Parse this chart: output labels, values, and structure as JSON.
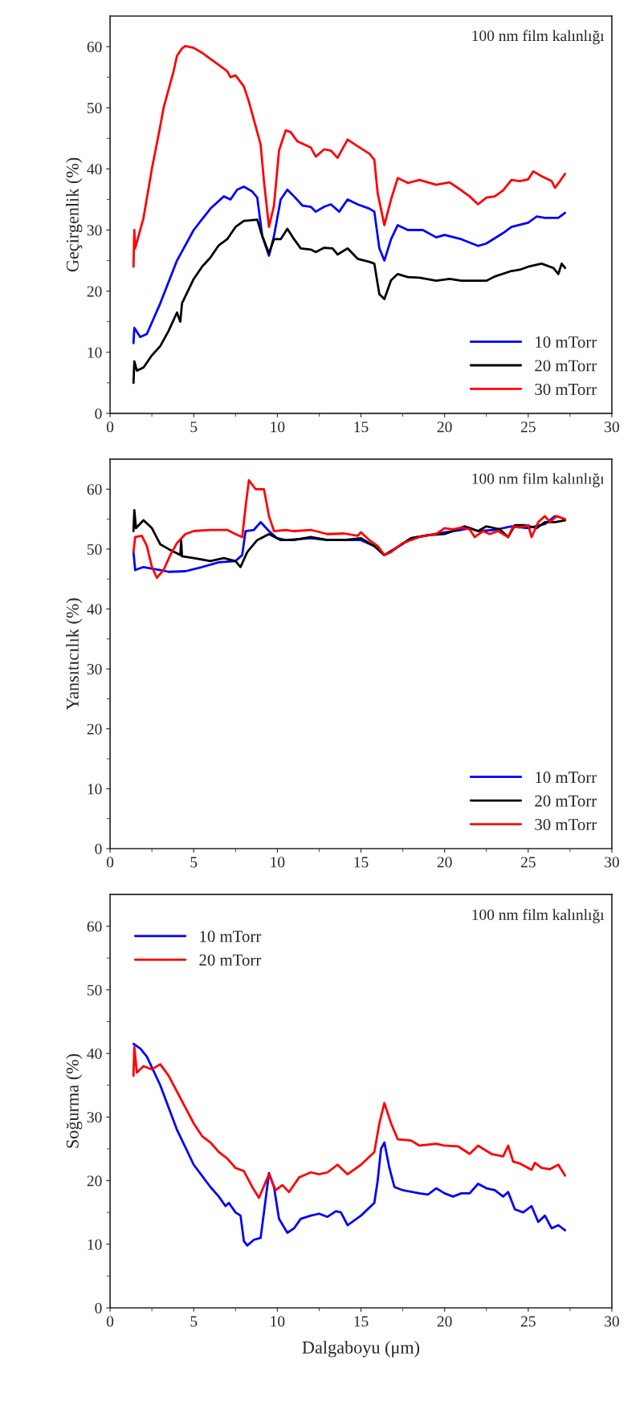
{
  "chart_data": [
    {
      "type": "line",
      "ylabel": "Geçirgenlik (%)",
      "annotations": [
        "100 nm film kalınlığı"
      ],
      "xlim": [
        0,
        30
      ],
      "xticks": [
        0,
        5,
        10,
        15,
        20,
        25,
        30
      ],
      "ylim": [
        0,
        65
      ],
      "yticks": [
        0,
        10,
        20,
        30,
        40,
        50,
        60
      ],
      "legend": "bottom right",
      "grid": false,
      "marker": "none",
      "line_style": "solid",
      "series": [
        {
          "name": "10 mTorr",
          "color": "#0000ff",
          "x": [
            1.4,
            1.45,
            1.8,
            2.2,
            3,
            4,
            5,
            6,
            6.8,
            7.2,
            7.6,
            8,
            8.5,
            8.8,
            9.1,
            9.5,
            9.8,
            10.2,
            10.6,
            11,
            11.5,
            12,
            12.3,
            12.8,
            13.2,
            13.7,
            14.2,
            14.8,
            15.5,
            15.8,
            16.1,
            16.4,
            16.8,
            17.2,
            17.8,
            18.7,
            19.5,
            20,
            21,
            22,
            22.5,
            23.5,
            24,
            25,
            25.5,
            26,
            26.8,
            27.2
          ],
          "values": [
            11.5,
            14,
            12.5,
            13,
            18,
            25,
            30,
            33.5,
            35.5,
            35,
            36.6,
            37.1,
            36.3,
            35.3,
            29,
            25.8,
            29,
            35,
            36.6,
            35.5,
            34,
            33.8,
            33,
            33.8,
            34.2,
            33,
            35,
            34.2,
            33.5,
            33,
            27,
            25,
            28.5,
            30.8,
            30,
            30,
            28.8,
            29.2,
            28.5,
            27.4,
            27.8,
            29.5,
            30.5,
            31.2,
            32.2,
            32,
            32,
            32.8
          ]
        },
        {
          "name": "20 mTorr",
          "color": "#000000",
          "x": [
            1.4,
            1.45,
            1.6,
            2,
            2.5,
            3,
            3.5,
            4,
            4.2,
            4.3,
            5,
            5.5,
            6,
            6.5,
            7,
            7.5,
            8,
            8.8,
            9.1,
            9.5,
            9.8,
            10.2,
            10.6,
            11,
            11.4,
            12,
            12.3,
            12.8,
            13.3,
            13.6,
            14.2,
            14.8,
            15.5,
            15.8,
            16.1,
            16.4,
            16.8,
            17.2,
            17.8,
            18.5,
            19.5,
            20.3,
            21,
            22.5,
            23,
            24,
            24.5,
            25,
            25.8,
            26.5,
            26.8,
            27,
            27.2
          ],
          "values": [
            5,
            8.5,
            7,
            7.5,
            9.5,
            11,
            13.5,
            16.5,
            15,
            18,
            22,
            24,
            25.5,
            27.5,
            28.5,
            30.5,
            31.5,
            31.7,
            29,
            26.2,
            28.5,
            28.5,
            30.2,
            28.5,
            27,
            26.8,
            26.4,
            27.1,
            27,
            26,
            27,
            25.3,
            24.8,
            24.5,
            19.5,
            18.7,
            21.8,
            22.8,
            22.3,
            22.2,
            21.7,
            22,
            21.7,
            21.7,
            22.4,
            23.3,
            23.5,
            24,
            24.5,
            23.8,
            22.8,
            24.5,
            23.8
          ]
        },
        {
          "name": "30 mTorr",
          "color": "#ff0000",
          "x": [
            1.4,
            1.45,
            1.5,
            2,
            2.5,
            3,
            3.2,
            3.5,
            3.8,
            4,
            4.3,
            4.5,
            5,
            5.5,
            6,
            6.5,
            7,
            7.2,
            7.5,
            8,
            8.3,
            8.6,
            9,
            9.2,
            9.5,
            9.8,
            10.1,
            10.5,
            10.8,
            11.2,
            12,
            12.3,
            12.8,
            13.2,
            13.6,
            14.2,
            14.8,
            15.5,
            15.8,
            16,
            16.4,
            16.8,
            17.2,
            17.8,
            18.5,
            19.5,
            20.3,
            21,
            21.5,
            22,
            22.5,
            23,
            23.5,
            24,
            24.5,
            25,
            25.3,
            25.8,
            26.4,
            26.6,
            26.9,
            27.2
          ],
          "values": [
            24,
            30,
            27,
            32,
            40,
            47,
            50,
            53,
            56,
            58.5,
            59.7,
            60.1,
            59.8,
            59,
            58,
            57,
            56,
            55,
            55.3,
            53.5,
            51,
            48,
            44,
            38,
            30.5,
            34,
            43,
            46.3,
            46,
            44.5,
            43.5,
            42,
            43.2,
            43,
            41.8,
            44.8,
            43.7,
            42.5,
            41.5,
            36,
            30.8,
            35,
            38.5,
            37.7,
            38.2,
            37.4,
            37.8,
            36.5,
            35.5,
            34.2,
            35.3,
            35.5,
            36.5,
            38.2,
            38,
            38.3,
            39.6,
            38.8,
            38,
            36.9,
            38,
            39.2
          ]
        }
      ]
    },
    {
      "type": "line",
      "ylabel": "Yansıtıcılık (%)",
      "annotations": [
        "100 nm film kalınlığı"
      ],
      "xlim": [
        0,
        30
      ],
      "xticks": [
        0,
        5,
        10,
        15,
        20,
        25,
        30
      ],
      "ylim": [
        0,
        65
      ],
      "yticks": [
        0,
        10,
        20,
        30,
        40,
        50,
        60
      ],
      "legend": "bottom right",
      "grid": false,
      "marker": "none",
      "line_style": "solid",
      "series": [
        {
          "name": "10 mTorr",
          "color": "#0000ff",
          "x": [
            1.4,
            1.5,
            2,
            3,
            3.5,
            4.5,
            5.5,
            6.5,
            7.5,
            7.9,
            8.1,
            8.6,
            9,
            9.5,
            10,
            10.5,
            12,
            13,
            14,
            15,
            15.8,
            16.4,
            17,
            18,
            19,
            20,
            21,
            21.5,
            22,
            23,
            24,
            25,
            26,
            26.6
          ],
          "values": [
            49.5,
            46.5,
            47,
            46.5,
            46.2,
            46.3,
            47,
            47.8,
            48,
            49,
            53,
            53.2,
            54.5,
            53,
            51.8,
            51.5,
            51.8,
            51.5,
            51.5,
            51.5,
            50.5,
            49,
            50,
            51.8,
            52.3,
            52.8,
            53.2,
            53.5,
            53,
            53.2,
            53.8,
            53.5,
            54.2,
            55.5
          ]
        },
        {
          "name": "20 mTorr",
          "color": "#000000",
          "x": [
            1.4,
            1.45,
            1.55,
            2,
            2.5,
            3,
            3.5,
            4.2,
            4.25,
            4.3,
            5,
            6,
            6.8,
            7.5,
            7.8,
            8.2,
            8.8,
            9.5,
            10.2,
            11,
            12,
            13,
            14,
            15,
            15.8,
            16.4,
            17,
            18,
            19,
            20,
            20.5,
            21.2,
            22,
            22.5,
            23.3,
            23.8,
            24.2,
            24.8,
            25.5,
            26,
            26.6,
            27.2
          ],
          "values": [
            53,
            56.5,
            53.5,
            54.8,
            53.5,
            50.8,
            50,
            49,
            51.5,
            48.8,
            48.5,
            48,
            48.5,
            48,
            47,
            49.5,
            51.5,
            52.5,
            51.5,
            51.5,
            52,
            51.5,
            51.5,
            51.8,
            50.5,
            49,
            50,
            51.8,
            52.3,
            52.5,
            53,
            53.8,
            53,
            53.8,
            53.3,
            52,
            54,
            54,
            53.5,
            54.5,
            54.5,
            54.8
          ]
        },
        {
          "name": "30 mTorr",
          "color": "#ff0000",
          "x": [
            1.4,
            1.5,
            1.9,
            2.2,
            2.5,
            2.8,
            3.2,
            3.6,
            4,
            4.5,
            5,
            6,
            7,
            7.5,
            7.9,
            8.1,
            8.3,
            8.7,
            9.2,
            9.5,
            9.8,
            10.5,
            11,
            12,
            13,
            14,
            14.8,
            15,
            15.5,
            16,
            16.4,
            16.8,
            17.5,
            18.5,
            19.5,
            20,
            20.5,
            21,
            21.5,
            21.8,
            22.3,
            22.7,
            23.2,
            23.8,
            24.1,
            24.5,
            25,
            25.2,
            25.6,
            26,
            26.3,
            26.7,
            27.2
          ],
          "values": [
            49.5,
            52,
            52.2,
            50.5,
            47,
            45.2,
            46.5,
            49,
            51,
            52.5,
            53,
            53.2,
            53.2,
            52.5,
            52,
            57,
            61.5,
            60,
            60,
            55.5,
            53,
            53.2,
            53,
            53.2,
            52.5,
            52.6,
            52.2,
            52.8,
            51.5,
            50.5,
            49,
            49.5,
            51,
            52,
            52.5,
            53.5,
            53.3,
            53.6,
            53.3,
            52,
            53,
            52.5,
            53,
            52,
            53.8,
            53.6,
            54,
            52,
            54.5,
            55.5,
            54.5,
            55.5,
            55
          ]
        }
      ]
    },
    {
      "type": "line",
      "ylabel": "Soğurma (%)",
      "xlabel": "Dalgaboyu (μm)",
      "annotations": [
        "100 nm film kalınlığı"
      ],
      "xlim": [
        0,
        30
      ],
      "xticks": [
        0,
        5,
        10,
        15,
        20,
        25,
        30
      ],
      "ylim": [
        0,
        65
      ],
      "yticks": [
        0,
        10,
        20,
        30,
        40,
        50,
        60
      ],
      "legend": "top left",
      "grid": false,
      "marker": "none",
      "line_style": "solid",
      "series": [
        {
          "name": "10 mTorr",
          "color": "#0000ff",
          "x": [
            1.4,
            1.8,
            2.2,
            3,
            4,
            5,
            6,
            6.5,
            6.9,
            7.1,
            7.5,
            7.8,
            8,
            8.2,
            8.6,
            9,
            9.2,
            9.5,
            9.8,
            10.1,
            10.6,
            11,
            11.4,
            12,
            12.5,
            13,
            13.5,
            13.8,
            14.2,
            15,
            15.8,
            16,
            16.2,
            16.4,
            16.7,
            17,
            17.5,
            18.5,
            19,
            19.5,
            20,
            20.5,
            21,
            21.5,
            22,
            22.5,
            23,
            23.5,
            23.8,
            24.2,
            24.7,
            25.2,
            25.6,
            26,
            26.4,
            26.8,
            27.2
          ],
          "values": [
            41.5,
            40.8,
            39.5,
            35,
            28,
            22.5,
            19,
            17.5,
            16,
            16.5,
            15,
            14.5,
            10.5,
            9.8,
            10.7,
            11,
            15,
            21.2,
            19,
            14,
            11.8,
            12.5,
            14,
            14.5,
            14.8,
            14.3,
            15.2,
            15,
            13,
            14.5,
            16.5,
            20,
            25,
            26,
            22,
            19,
            18.5,
            18,
            17.8,
            18.8,
            18,
            17.5,
            18,
            18,
            19.5,
            18.8,
            18.5,
            17.5,
            18.2,
            15.5,
            15,
            16,
            13.5,
            14.5,
            12.5,
            13,
            12.2
          ]
        },
        {
          "name": "20 mTorr",
          "color": "#ff0000",
          "x": [
            1.4,
            1.45,
            1.6,
            2,
            2.5,
            3,
            3.5,
            4,
            4.5,
            5,
            5.5,
            6,
            6.5,
            7,
            7.5,
            8,
            8.5,
            8.9,
            9.5,
            9.9,
            10.3,
            10.7,
            11.3,
            12,
            12.5,
            13,
            13.6,
            14.2,
            15,
            15.8,
            16.1,
            16.4,
            16.8,
            17.2,
            18,
            18.5,
            19.5,
            20,
            20.8,
            21.5,
            22,
            22.8,
            23.5,
            23.8,
            24.1,
            24.5,
            25.2,
            25.4,
            25.8,
            26.3,
            26.8,
            27.2
          ],
          "values": [
            36.5,
            41,
            37,
            38,
            37.5,
            38.3,
            36.5,
            34,
            31.5,
            29,
            27,
            26,
            24.5,
            23.5,
            22,
            21.5,
            19,
            17.3,
            21,
            18.5,
            19.3,
            18.2,
            20.5,
            21.3,
            21,
            21.3,
            22.5,
            21,
            22.5,
            24.5,
            29,
            32.2,
            29,
            26.5,
            26.3,
            25.5,
            25.8,
            25.5,
            25.4,
            24.2,
            25.5,
            24.2,
            23.8,
            25.5,
            23,
            22.7,
            21.7,
            22.8,
            22,
            21.8,
            22.5,
            20.8
          ]
        }
      ]
    }
  ]
}
